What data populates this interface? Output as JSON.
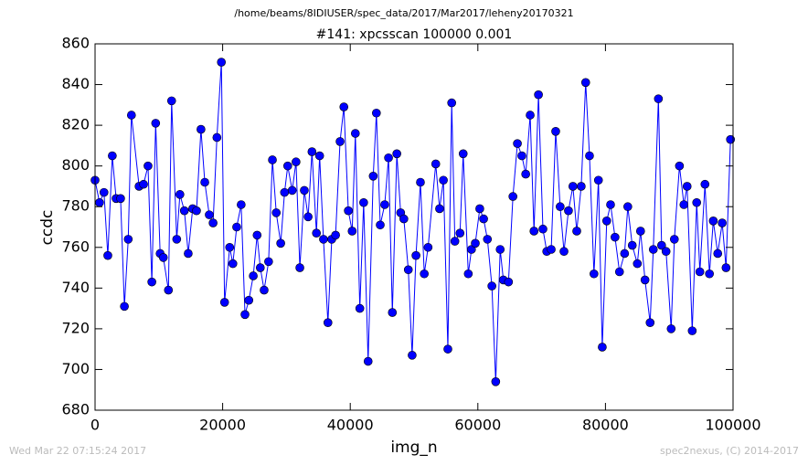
{
  "chart_data": {
    "type": "line",
    "suptitle": "/home/beams/8IDIUSER/spec_data/2017/Mar2017/leheny20170321",
    "title": "#141: xpcsscan 100000 0.001",
    "xlabel": "img_n",
    "ylabel": "ccdc",
    "timestamp": "Wed Mar 22 07:15:24 2017",
    "credit": "spec2nexus, (C) 2014-2017",
    "color": "#0000ff",
    "xlim": [
      0,
      100000
    ],
    "xticks": [
      0,
      20000,
      40000,
      60000,
      80000,
      100000
    ],
    "ylim": [
      680,
      860
    ],
    "yticks": [
      680,
      700,
      720,
      740,
      760,
      780,
      800,
      820,
      840,
      860
    ],
    "x": [
      0,
      700,
      1400,
      2000,
      2700,
      3300,
      4000,
      4600,
      5200,
      5700,
      6900,
      7600,
      8300,
      8900,
      9500,
      10200,
      10700,
      11500,
      12000,
      12800,
      13300,
      14000,
      14600,
      15300,
      15900,
      16600,
      17200,
      17900,
      18500,
      19100,
      19800,
      20300,
      21100,
      21600,
      22200,
      22900,
      23500,
      24100,
      24800,
      25400,
      25900,
      26500,
      27200,
      27800,
      28400,
      29100,
      29700,
      30200,
      30900,
      31500,
      32100,
      32800,
      33400,
      34000,
      34700,
      35200,
      35800,
      36500,
      37100,
      37700,
      38400,
      39000,
      39700,
      40300,
      40800,
      41500,
      42100,
      42800,
      43600,
      44100,
      44700,
      45400,
      46000,
      46600,
      47300,
      47900,
      48400,
      49100,
      49700,
      50300,
      51000,
      51600,
      52200,
      53400,
      54000,
      54600,
      55300,
      55900,
      56400,
      57200,
      57700,
      58500,
      59000,
      59600,
      60300,
      60900,
      61500,
      62200,
      62800,
      63500,
      64000,
      64800,
      65500,
      66200,
      66900,
      67500,
      68200,
      68800,
      69500,
      70200,
      70800,
      71500,
      72200,
      72900,
      73500,
      74200,
      74900,
      75500,
      76200,
      76900,
      77500,
      78200,
      78900,
      79500,
      80200,
      80800,
      81500,
      82200,
      83000,
      83500,
      84200,
      85000,
      85500,
      86200,
      87000,
      87500,
      88300,
      88800,
      89500,
      90300,
      90800,
      91600,
      92300,
      92800,
      93600,
      94300,
      94800,
      95600,
      96300,
      96900,
      97600,
      98300,
      98900,
      99600
    ],
    "values": [
      793,
      782,
      787,
      756,
      805,
      784,
      784,
      731,
      764,
      825,
      790,
      791,
      800,
      743,
      821,
      757,
      755,
      739,
      832,
      764,
      786,
      778,
      757,
      779,
      778,
      818,
      792,
      776,
      772,
      814,
      851,
      733,
      760,
      752,
      770,
      781,
      727,
      734,
      746,
      766,
      750,
      739,
      753,
      803,
      777,
      762,
      787,
      800,
      788,
      802,
      750,
      788,
      775,
      807,
      767,
      805,
      764,
      723,
      764,
      766,
      812,
      829,
      778,
      768,
      816,
      730,
      782,
      704,
      795,
      826,
      771,
      781,
      804,
      728,
      806,
      777,
      774,
      749,
      707,
      756,
      792,
      747,
      760,
      801,
      779,
      793,
      710,
      831,
      763,
      767,
      806,
      747,
      759,
      762,
      779,
      774,
      764,
      741,
      694,
      759,
      744,
      743,
      785,
      811,
      805,
      796,
      825,
      768,
      835,
      769,
      758,
      759,
      817,
      780,
      758,
      778,
      790,
      768,
      790,
      841,
      805,
      747,
      793,
      711,
      773,
      781,
      765,
      748,
      757,
      780,
      761,
      752,
      768,
      744,
      723,
      759,
      833,
      761,
      758,
      720,
      764,
      800,
      781,
      790,
      719,
      782,
      748,
      791,
      747,
      773,
      757,
      772,
      750,
      813
    ]
  }
}
